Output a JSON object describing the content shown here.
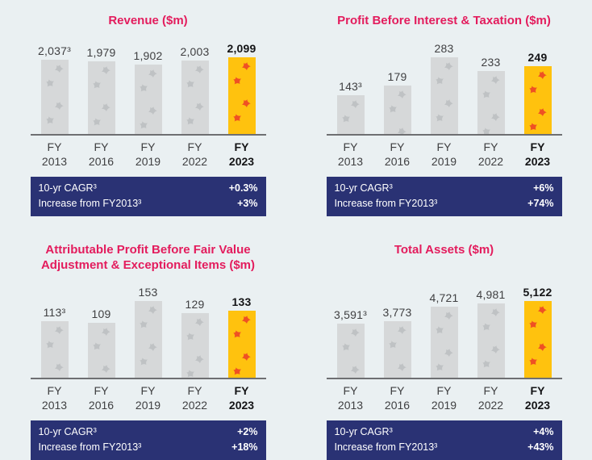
{
  "page": {
    "background_color": "#eaf0f2",
    "x_axis_prefix": "FY"
  },
  "colors": {
    "title_pink": "#e31c5d",
    "banner_navy": "#2a3274",
    "bar_gray": "#d6d8d9",
    "bar_gray_motif": "#bfc2c4",
    "bar_gold": "#ffc20e",
    "bar_gold_motif": "#ef5123",
    "axis_line": "#6e6f72",
    "label_dark": "#3f3f41"
  },
  "chart_data": [
    {
      "type": "bar",
      "title": "Revenue ($m)",
      "x_prefix": "FY",
      "categories": [
        "2013",
        "2016",
        "2019",
        "2022",
        "2023"
      ],
      "values": [
        2037,
        1979,
        1902,
        2003,
        2099
      ],
      "bars": [
        {
          "year": "2013",
          "label": "2,037³",
          "value": 2037,
          "highlight": false
        },
        {
          "year": "2016",
          "label": "1,979",
          "value": 1979,
          "highlight": false
        },
        {
          "year": "2019",
          "label": "1,902",
          "value": 1902,
          "highlight": false
        },
        {
          "year": "2022",
          "label": "2,003",
          "value": 2003,
          "highlight": false
        },
        {
          "year": "2023",
          "label": "2,099",
          "value": 2099,
          "highlight": true
        }
      ],
      "banner": {
        "rows": [
          {
            "label": "10-yr CAGR³",
            "value": "+0.3%"
          },
          {
            "label": "Increase from FY2013³",
            "value": "+3%"
          }
        ]
      }
    },
    {
      "type": "bar",
      "title": "Profit Before Interest & Taxation ($m)",
      "x_prefix": "FY",
      "categories": [
        "2013",
        "2016",
        "2019",
        "2022",
        "2023"
      ],
      "values": [
        143,
        179,
        283,
        233,
        249
      ],
      "bars": [
        {
          "year": "2013",
          "label": "143³",
          "value": 143,
          "highlight": false
        },
        {
          "year": "2016",
          "label": "179",
          "value": 179,
          "highlight": false
        },
        {
          "year": "2019",
          "label": "283",
          "value": 283,
          "highlight": false
        },
        {
          "year": "2022",
          "label": "233",
          "value": 233,
          "highlight": false
        },
        {
          "year": "2023",
          "label": "249",
          "value": 249,
          "highlight": true
        }
      ],
      "banner": {
        "rows": [
          {
            "label": "10-yr CAGR³",
            "value": "+6%"
          },
          {
            "label": "Increase from FY2013³",
            "value": "+74%"
          }
        ]
      }
    },
    {
      "type": "bar",
      "title": "Attributable Profit Before Fair Value Adjustment & Exceptional Items ($m)",
      "x_prefix": "FY",
      "categories": [
        "2013",
        "2016",
        "2019",
        "2022",
        "2023"
      ],
      "values": [
        113,
        109,
        153,
        129,
        133
      ],
      "bars": [
        {
          "year": "2013",
          "label": "113³",
          "value": 113,
          "highlight": false
        },
        {
          "year": "2016",
          "label": "109",
          "value": 109,
          "highlight": false
        },
        {
          "year": "2019",
          "label": "153",
          "value": 153,
          "highlight": false
        },
        {
          "year": "2022",
          "label": "129",
          "value": 129,
          "highlight": false
        },
        {
          "year": "2023",
          "label": "133",
          "value": 133,
          "highlight": true
        }
      ],
      "banner": {
        "rows": [
          {
            "label": "10-yr CAGR³",
            "value": "+2%"
          },
          {
            "label": "Increase from FY2013³",
            "value": "+18%"
          }
        ]
      }
    },
    {
      "type": "bar",
      "title": "Total Assets ($m)",
      "x_prefix": "FY",
      "categories": [
        "2013",
        "2016",
        "2019",
        "2022",
        "2023"
      ],
      "values": [
        3591,
        3773,
        4721,
        4981,
        5122
      ],
      "bars": [
        {
          "year": "2013",
          "label": "3,591³",
          "value": 3591,
          "highlight": false
        },
        {
          "year": "2016",
          "label": "3,773",
          "value": 3773,
          "highlight": false
        },
        {
          "year": "2019",
          "label": "4,721",
          "value": 4721,
          "highlight": false
        },
        {
          "year": "2022",
          "label": "4,981",
          "value": 4981,
          "highlight": false
        },
        {
          "year": "2023",
          "label": "5,122",
          "value": 5122,
          "highlight": true
        }
      ],
      "banner": {
        "rows": [
          {
            "label": "10-yr CAGR³",
            "value": "+4%"
          },
          {
            "label": "Increase from FY2013³",
            "value": "+43%"
          }
        ]
      }
    }
  ]
}
